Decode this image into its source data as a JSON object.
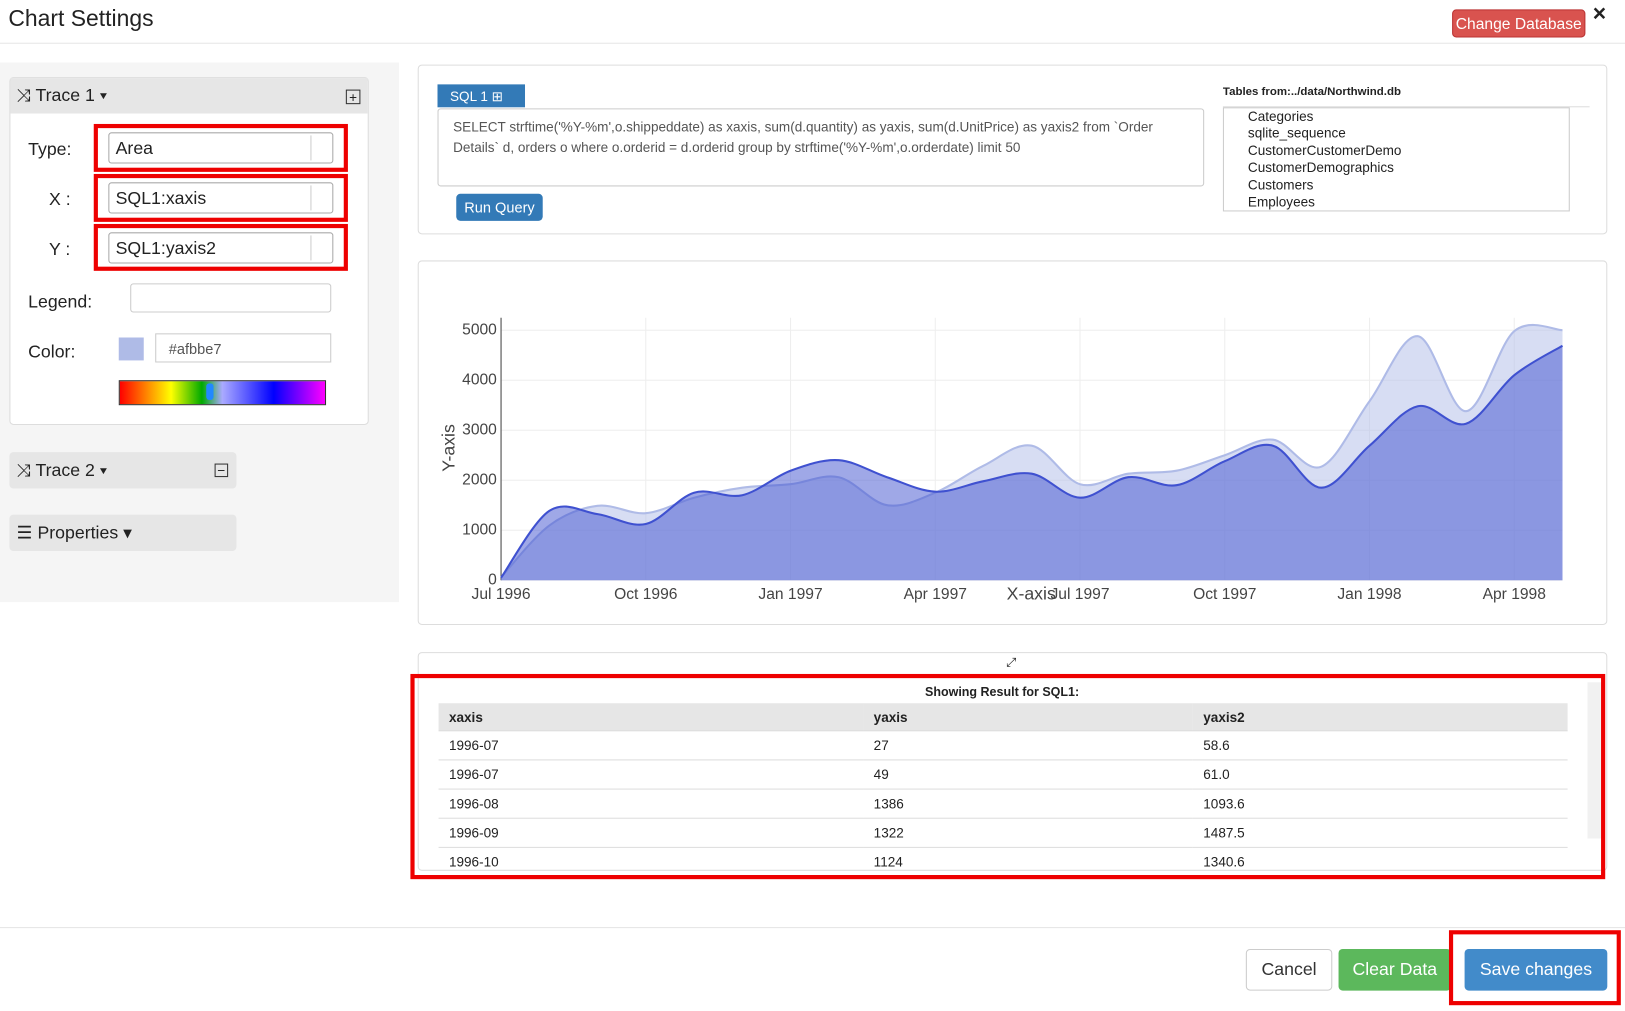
{
  "header": {
    "title": "Chart Settings",
    "change_database": "Change Database",
    "close": "×"
  },
  "trace_panel": {
    "title": "Trace 1",
    "type_label": "Type:",
    "type_value": "Area",
    "x_label": "X :",
    "x_value": "SQL1:xaxis",
    "y_label": "Y :",
    "y_value": "SQL1:yaxis2",
    "legend_label": "Legend:",
    "color_label": "Color:",
    "color_value": "#afbbe7"
  },
  "trace2": {
    "title": "Trace 2"
  },
  "properties": {
    "title": "Properties"
  },
  "query_panel": {
    "tab": "SQL 1",
    "query": "SELECT strftime('%Y-%m',o.shippeddate) as xaxis, sum(d.quantity) as yaxis, sum(d.UnitPrice) as yaxis2 from `Order Details` d, orders o where o.orderid = d.orderid group by strftime('%Y-%m',o.orderdate) limit 50",
    "run": "Run Query",
    "tables_title": "Tables from:../data/Northwind.db",
    "tables": [
      "Categories",
      "sqlite_sequence",
      "CustomerCustomerDemo",
      "CustomerDemographics",
      "Customers",
      "Employees"
    ]
  },
  "chart_data": {
    "type": "area",
    "x_label": "X-axis",
    "y_label": "Y-axis",
    "x": [
      "1996-07",
      "1996-08",
      "1996-09",
      "1996-10",
      "1996-11",
      "1996-12",
      "1997-01",
      "1997-02",
      "1997-03",
      "1997-04",
      "1997-05",
      "1997-06",
      "1997-07",
      "1997-08",
      "1997-09",
      "1997-10",
      "1997-11",
      "1997-12",
      "1998-01",
      "1998-02",
      "1998-03",
      "1998-04",
      "1998-05"
    ],
    "series": [
      {
        "color": "#afbbe7",
        "values": [
          58.6,
          1093.6,
          1487.5,
          1340.6,
          1650,
          1850,
          1920,
          2060,
          1500,
          1750,
          2290,
          2690,
          1920,
          2130,
          2190,
          2500,
          2810,
          2270,
          3580,
          4880,
          3380,
          4980,
          5000
        ]
      },
      {
        "color": "#3f51d0",
        "values": [
          50,
          1386,
          1322,
          1124,
          1750,
          1700,
          2190,
          2400,
          2060,
          1770,
          1980,
          2130,
          1650,
          2060,
          1900,
          2380,
          2690,
          1850,
          2690,
          3480,
          3130,
          4100,
          4690
        ]
      }
    ],
    "xlim": [
      "1996-07",
      "1998-05"
    ],
    "xticks": [
      {
        "value": "1996-07",
        "label": "Jul 1996"
      },
      {
        "value": "1996-10",
        "label": "Oct 1996"
      },
      {
        "value": "1997-01",
        "label": "Jan 1997"
      },
      {
        "value": "1997-04",
        "label": "Apr 1997"
      },
      {
        "value": "1997-07",
        "label": "Jul 1997"
      },
      {
        "value": "1997-10",
        "label": "Oct 1997"
      },
      {
        "value": "1998-01",
        "label": "Jan 1998"
      },
      {
        "value": "1998-04",
        "label": "Apr 1998"
      }
    ],
    "ylim": [
      0,
      5250
    ],
    "yticks": [
      0,
      1000,
      2000,
      3000,
      4000,
      5000
    ],
    "grid": true
  },
  "results": {
    "title": "Showing Result for SQL1:",
    "columns": [
      "xaxis",
      "yaxis",
      "yaxis2"
    ],
    "rows": [
      [
        "1996-07",
        "27",
        "58.6"
      ],
      [
        "1996-07",
        "49",
        "61.0"
      ],
      [
        "1996-08",
        "1386",
        "1093.6"
      ],
      [
        "1996-09",
        "1322",
        "1487.5"
      ],
      [
        "1996-10",
        "1124",
        "1340.6"
      ]
    ]
  },
  "footer": {
    "cancel": "Cancel",
    "clear": "Clear Data",
    "save": "Save changes"
  }
}
